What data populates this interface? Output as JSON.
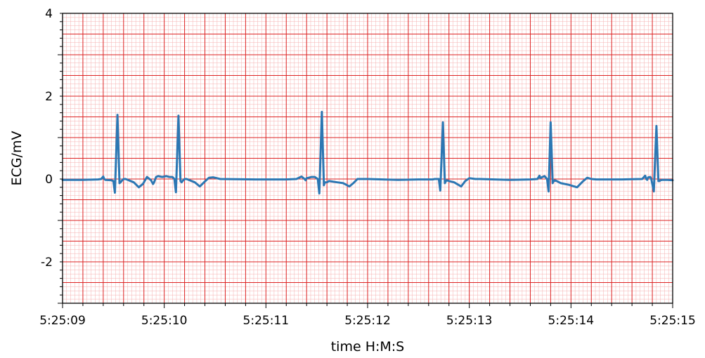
{
  "chart_data": {
    "type": "line",
    "title": "",
    "xlabel": "time H:M:S",
    "ylabel": "ECG/mV",
    "xlim": [
      0,
      6
    ],
    "ylim": [
      -3,
      4
    ],
    "x_tick_values": [
      0,
      1,
      2,
      3,
      4,
      5,
      6
    ],
    "x_tick_labels": [
      "5:25:09",
      "5:25:10",
      "5:25:11",
      "5:25:12",
      "5:25:13",
      "5:25:14",
      "5:25:15"
    ],
    "y_tick_values": [
      -2,
      0,
      2,
      4
    ],
    "y_tick_labels": [
      "-2",
      "0",
      "2",
      "4"
    ],
    "grid": "ecg paper (major 0.2 s / 0.5 mV, minor 0.04 s / 0.1 mV)",
    "colors": {
      "line": "#2c77b3",
      "major_grid": "#dd2222",
      "minor_grid": "#f6b0b0"
    },
    "beats": [
      {
        "t": 0.54,
        "peak": 1.55,
        "trough": -0.33
      },
      {
        "t": 1.14,
        "peak": 1.53,
        "trough": -0.32
      },
      {
        "t": 2.55,
        "peak": 1.62,
        "trough": -0.35
      },
      {
        "t": 3.74,
        "peak": 1.37,
        "trough": -0.28
      },
      {
        "t": 4.8,
        "peak": 1.37,
        "trough": -0.3
      },
      {
        "t": 5.84,
        "peak": 1.28,
        "trough": -0.3
      }
    ],
    "series": [
      {
        "x": [
          0.0,
          0.2,
          0.35,
          0.38,
          0.4,
          0.41,
          0.42,
          0.48,
          0.5,
          0.515,
          0.54,
          0.56,
          0.57,
          0.58,
          0.6,
          0.62,
          0.7,
          0.75,
          0.79,
          0.83,
          0.87,
          0.89,
          0.9,
          0.92,
          0.94,
          0.98,
          1.02,
          1.05,
          1.08,
          1.1,
          1.115,
          1.14,
          1.16,
          1.17,
          1.18,
          1.2,
          1.22,
          1.3,
          1.35,
          1.4,
          1.44,
          1.48,
          1.5,
          1.55,
          1.9,
          2.2,
          2.3,
          2.35,
          2.38,
          2.39,
          2.4,
          2.42,
          2.45,
          2.48,
          2.51,
          2.525,
          2.55,
          2.57,
          2.58,
          2.6,
          2.62,
          2.7,
          2.76,
          2.82,
          2.86,
          2.9,
          2.95,
          3.0,
          3.3,
          3.5,
          3.6,
          3.64,
          3.66,
          3.7,
          3.715,
          3.74,
          3.76,
          3.77,
          3.78,
          3.8,
          3.85,
          3.92,
          3.96,
          4.0,
          4.06,
          4.1,
          4.4,
          4.6,
          4.67,
          4.69,
          4.7,
          4.72,
          4.74,
          4.765,
          4.78,
          4.8,
          4.82,
          4.83,
          4.84,
          4.86,
          4.9,
          4.98,
          5.06,
          5.12,
          5.16,
          5.2,
          5.25,
          5.5,
          5.7,
          5.73,
          5.74,
          5.75,
          5.76,
          5.78,
          5.79,
          5.815,
          5.84,
          5.86,
          5.87,
          5.88,
          5.9,
          5.95,
          6.0
        ],
        "y": [
          -0.02,
          -0.02,
          -0.01,
          0.0,
          0.06,
          0.0,
          -0.02,
          -0.03,
          -0.05,
          -0.33,
          1.55,
          -0.1,
          -0.08,
          -0.05,
          0.0,
          0.0,
          -0.08,
          -0.2,
          -0.12,
          0.05,
          -0.03,
          -0.12,
          -0.08,
          0.05,
          0.07,
          0.05,
          0.07,
          0.05,
          0.05,
          0.0,
          -0.32,
          1.53,
          -0.05,
          -0.08,
          -0.05,
          0.0,
          0.0,
          -0.08,
          -0.18,
          -0.06,
          0.03,
          0.04,
          0.03,
          0.0,
          -0.01,
          -0.01,
          0.0,
          0.06,
          0.0,
          -0.03,
          0.02,
          0.03,
          0.05,
          0.05,
          0.0,
          -0.35,
          1.62,
          -0.15,
          -0.08,
          -0.08,
          -0.05,
          -0.08,
          -0.1,
          -0.18,
          -0.1,
          0.0,
          0.0,
          0.0,
          -0.02,
          -0.01,
          -0.01,
          -0.01,
          0.0,
          0.0,
          -0.28,
          1.37,
          -0.1,
          -0.05,
          -0.03,
          -0.05,
          -0.08,
          -0.18,
          -0.05,
          0.02,
          0.0,
          0.0,
          -0.02,
          -0.01,
          0.0,
          0.08,
          0.02,
          0.05,
          0.07,
          0.0,
          -0.3,
          1.37,
          -0.1,
          -0.05,
          -0.03,
          -0.05,
          -0.1,
          -0.14,
          -0.2,
          -0.05,
          0.03,
          0.0,
          -0.01,
          -0.01,
          0.0,
          0.08,
          0.0,
          -0.02,
          0.04,
          0.05,
          0.0,
          -0.3,
          1.28,
          -0.05,
          -0.05,
          -0.03,
          -0.02,
          -0.02,
          -0.03
        ]
      }
    ]
  }
}
